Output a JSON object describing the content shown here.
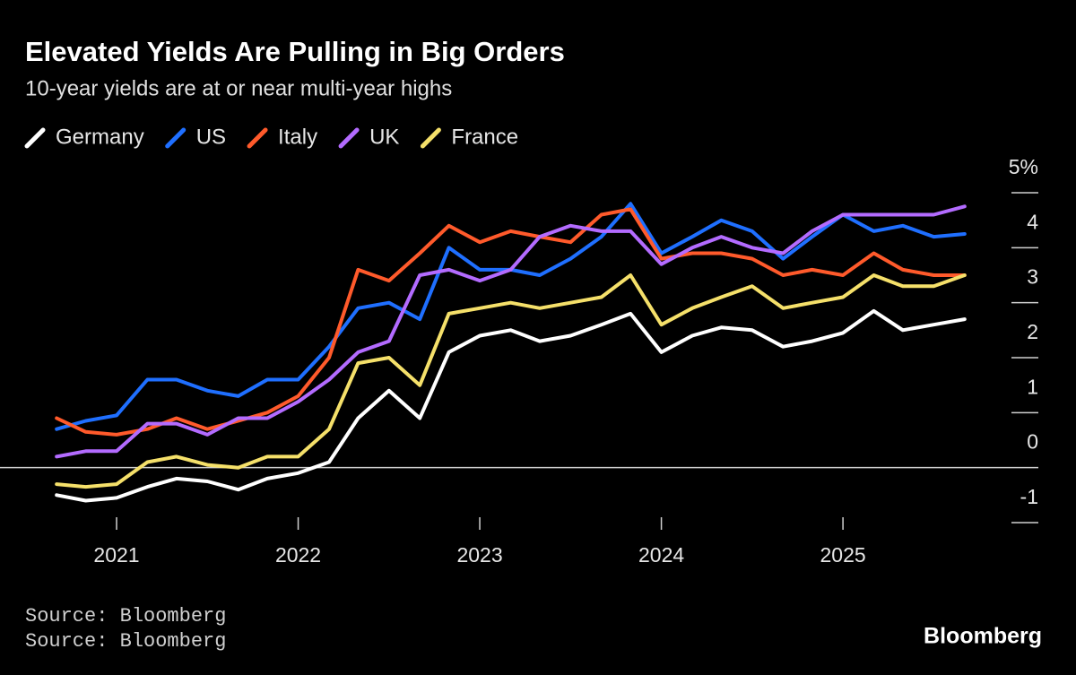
{
  "chart_data": {
    "type": "line",
    "title": "Elevated Yields Are Pulling in Big Orders",
    "subtitle": "10-year yields are at or near multi-year highs",
    "source": [
      "Source: Bloomberg",
      "Source: Bloomberg"
    ],
    "brand": "Bloomberg",
    "x": [
      2020.67,
      2020.83,
      2021,
      2021.17,
      2021.33,
      2021.5,
      2021.67,
      2021.83,
      2022,
      2022.17,
      2022.33,
      2022.5,
      2022.67,
      2022.83,
      2023,
      2023.17,
      2023.33,
      2023.5,
      2023.67,
      2023.83,
      2024,
      2024.17,
      2024.33,
      2024.5,
      2024.67,
      2024.83,
      2025,
      2025.17,
      2025.33,
      2025.5,
      2025.67
    ],
    "series": [
      {
        "name": "Germany",
        "color": "#ffffff",
        "values": [
          -0.5,
          -0.6,
          -0.55,
          -0.35,
          -0.2,
          -0.25,
          -0.4,
          -0.2,
          -0.1,
          0.1,
          0.9,
          1.4,
          0.9,
          2.1,
          2.4,
          2.5,
          2.3,
          2.4,
          2.6,
          2.8,
          2.1,
          2.4,
          2.55,
          2.5,
          2.2,
          2.3,
          2.45,
          2.85,
          2.5,
          2.6,
          2.7
        ]
      },
      {
        "name": "US",
        "color": "#1f6fff",
        "values": [
          0.7,
          0.85,
          0.95,
          1.6,
          1.6,
          1.4,
          1.3,
          1.6,
          1.6,
          2.2,
          2.9,
          3.0,
          2.7,
          4.0,
          3.6,
          3.6,
          3.5,
          3.8,
          4.2,
          4.8,
          3.9,
          4.2,
          4.5,
          4.3,
          3.8,
          4.2,
          4.6,
          4.3,
          4.4,
          4.2,
          4.25
        ]
      },
      {
        "name": "Italy",
        "color": "#ff5a2b",
        "values": [
          0.9,
          0.65,
          0.6,
          0.7,
          0.9,
          0.7,
          0.85,
          1.0,
          1.3,
          2.0,
          3.6,
          3.4,
          3.9,
          4.4,
          4.1,
          4.3,
          4.2,
          4.1,
          4.6,
          4.7,
          3.8,
          3.9,
          3.9,
          3.8,
          3.5,
          3.6,
          3.5,
          3.9,
          3.6,
          3.5,
          3.5
        ]
      },
      {
        "name": "UK",
        "color": "#b36bff",
        "values": [
          0.2,
          0.3,
          0.3,
          0.8,
          0.8,
          0.6,
          0.9,
          0.9,
          1.2,
          1.6,
          2.1,
          2.3,
          3.5,
          3.6,
          3.4,
          3.6,
          4.2,
          4.4,
          4.3,
          4.3,
          3.7,
          4.0,
          4.2,
          4.0,
          3.9,
          4.3,
          4.6,
          4.6,
          4.6,
          4.6,
          4.75
        ]
      },
      {
        "name": "France",
        "color": "#f5e06a",
        "values": [
          -0.3,
          -0.35,
          -0.3,
          0.1,
          0.2,
          0.05,
          0.0,
          0.2,
          0.2,
          0.7,
          1.9,
          2.0,
          1.5,
          2.8,
          2.9,
          3.0,
          2.9,
          3.0,
          3.1,
          3.5,
          2.6,
          2.9,
          3.1,
          3.3,
          2.9,
          3.0,
          3.1,
          3.5,
          3.3,
          3.3,
          3.5
        ]
      }
    ],
    "xlim": [
      2020.6,
      2025.75
    ],
    "xticks": [
      2021,
      2022,
      2023,
      2024,
      2025
    ],
    "ylim": [
      -1,
      5
    ],
    "yticks": [
      -1,
      0,
      1,
      2,
      3,
      4,
      {
        "value": 5,
        "label": "5%"
      }
    ],
    "grid": false
  }
}
